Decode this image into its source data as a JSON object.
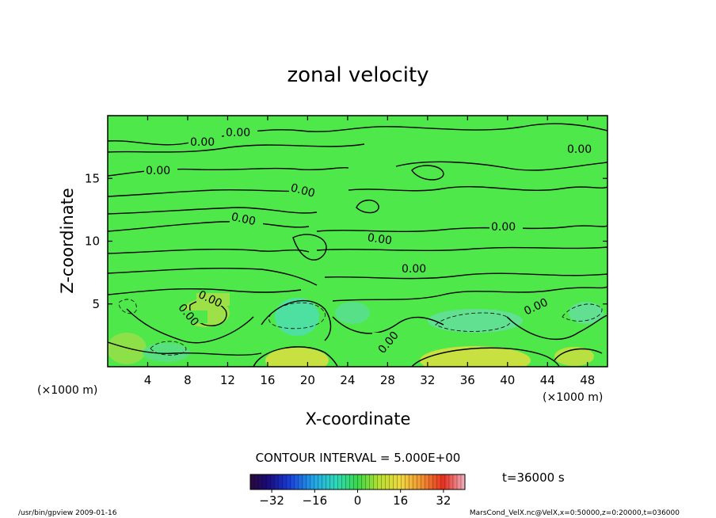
{
  "chart_data": {
    "type": "heatmap",
    "title": "zonal velocity",
    "xlabel": "X-coordinate",
    "ylabel": "Z-coordinate",
    "x_unit": "(×1000 m)",
    "z_unit": "(×1000 m)",
    "x_range": [
      0,
      50
    ],
    "z_range": [
      0,
      20
    ],
    "x_ticks": [
      4,
      8,
      12,
      16,
      20,
      24,
      28,
      32,
      36,
      40,
      44,
      48
    ],
    "z_ticks": [
      5,
      10,
      15
    ],
    "contour_interval_label": "CONTOUR INTERVAL = 5.000E+00",
    "contour_labels": [
      "0.00",
      "0.00",
      "0.00",
      "0.00",
      "0.00",
      "0.00",
      "0.00",
      "0.00",
      "0.00",
      "0.00",
      "0.00",
      "0.00",
      "0.00",
      "0.00"
    ],
    "colorbar": {
      "range": [
        -40,
        40
      ],
      "ticks": [
        -32,
        -16,
        0,
        16,
        32
      ],
      "tick_labels": [
        "−32",
        "−16",
        "0",
        "16",
        "32"
      ]
    },
    "time_label": "t=36000 s",
    "footer_left": "/usr/bin/gpview   2009-01-16",
    "footer_right": "MarsCond_VelX.nc@VelX,x=0:50000,z=0:20000,t=036000"
  }
}
